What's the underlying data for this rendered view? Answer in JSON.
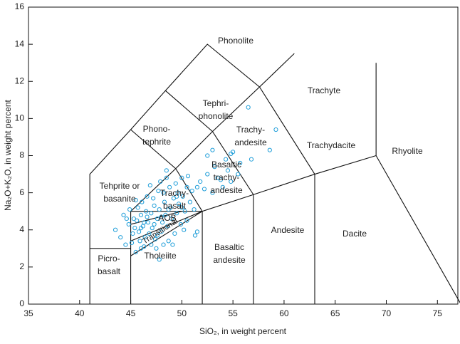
{
  "chart_data": {
    "type": "scatter",
    "x_label": "SiO₂, in weight percent",
    "y_label": "Na₂O+K₂O, in weight percent",
    "xlim": [
      35,
      77
    ],
    "ylim": [
      0,
      16
    ],
    "xticks": [
      35,
      40,
      45,
      50,
      55,
      60,
      65,
      70,
      75
    ],
    "yticks": [
      0,
      2,
      4,
      6,
      8,
      10,
      12,
      14,
      16
    ],
    "color": "#1f9ed9",
    "field_labels": [
      [
        "Phonolite"
      ],
      [
        "Tephri-",
        "phonolite"
      ],
      [
        "Phono-",
        "tephrite"
      ],
      [
        "Trachyte"
      ],
      [
        "Trachy-",
        "andesite"
      ],
      [
        "Trachydacite"
      ],
      [
        "Rhyolite"
      ],
      [
        "Basaltic",
        "trachy-",
        "andesite"
      ],
      [
        "Tehprite or",
        "basanite"
      ],
      [
        "Trachy-",
        "basalt"
      ],
      [
        "AOB"
      ],
      [
        "Transitional"
      ],
      [
        "Tholeiite"
      ],
      [
        "Picro-",
        "basalt"
      ],
      [
        "Basaltic",
        "andesite"
      ],
      [
        "Andesite"
      ],
      [
        "Dacite"
      ]
    ],
    "x": [
      56.5,
      59.2,
      56.8,
      58.6,
      55,
      54.8,
      53,
      52.5,
      55.5,
      54.5,
      53.5,
      54,
      53,
      52.5,
      53.8,
      51.5,
      51,
      50.5,
      50,
      49.5,
      48.5,
      47.8,
      51.5,
      51.3,
      43.5,
      44,
      44.3,
      44.5,
      44.8,
      45.5,
      46,
      45.2,
      45.4,
      45.6,
      45.8,
      46,
      46.2,
      46.4,
      46.5,
      46.7,
      46.8,
      47,
      47.1,
      47.3,
      47.4,
      47.6,
      47.8,
      48,
      48.1,
      48.3,
      48.4,
      48.6,
      48.7,
      48.9,
      49,
      49.2,
      49.3,
      49.5,
      49.7,
      49.9,
      50.1,
      50.3,
      50.5,
      45.3,
      45.7,
      46.1,
      46.6,
      47.2,
      47.7,
      48.2,
      48.8,
      49.4,
      45.1,
      45.9,
      46.3,
      47,
      47.5,
      48.2,
      44.9,
      44.6,
      45.5,
      46.9,
      47.9,
      48.5,
      50,
      50.8,
      51.2,
      50.2,
      49.1,
      46,
      46.6,
      47.3,
      48,
      48.7,
      47.6,
      46.3,
      49.6,
      50.6,
      51.8,
      52.2,
      53.2,
      54.3,
      55.7,
      54.8
    ],
    "y": [
      10.6,
      9.4,
      7.8,
      8.3,
      8.2,
      8.1,
      8.3,
      8,
      7,
      7.2,
      6.8,
      6.3,
      6,
      7,
      6.7,
      6.3,
      6.1,
      6.3,
      6.8,
      5.8,
      7.2,
      2.4,
      3.9,
      3.7,
      4,
      3.6,
      4.8,
      3.2,
      4.3,
      2.8,
      3,
      3.8,
      4.1,
      4.5,
      3.9,
      4.8,
      4.2,
      3.6,
      5,
      4.4,
      3.8,
      4.9,
      4.1,
      5.3,
      3.5,
      4.6,
      5.1,
      3.9,
      4.4,
      5.5,
      4.8,
      4.2,
      3.4,
      5.2,
      4.6,
      5.7,
      3.8,
      4.9,
      5.4,
      4.3,
      5.8,
      5,
      4.5,
      4.6,
      5.2,
      5.5,
      5.8,
      5.7,
      6.1,
      6,
      6.3,
      6.5,
      3.3,
      3.4,
      3.1,
      3.2,
      3,
      3.2,
      5.1,
      4.6,
      5.6,
      6.4,
      6.6,
      6.8,
      5.2,
      5.5,
      5.1,
      4,
      3.2,
      4.1,
      4.7,
      4.3,
      4.7,
      5.1,
      3.7,
      4.4,
      6,
      6.9,
      6.6,
      6.2,
      7.4,
      7.8,
      7.6,
      6.6
    ]
  }
}
